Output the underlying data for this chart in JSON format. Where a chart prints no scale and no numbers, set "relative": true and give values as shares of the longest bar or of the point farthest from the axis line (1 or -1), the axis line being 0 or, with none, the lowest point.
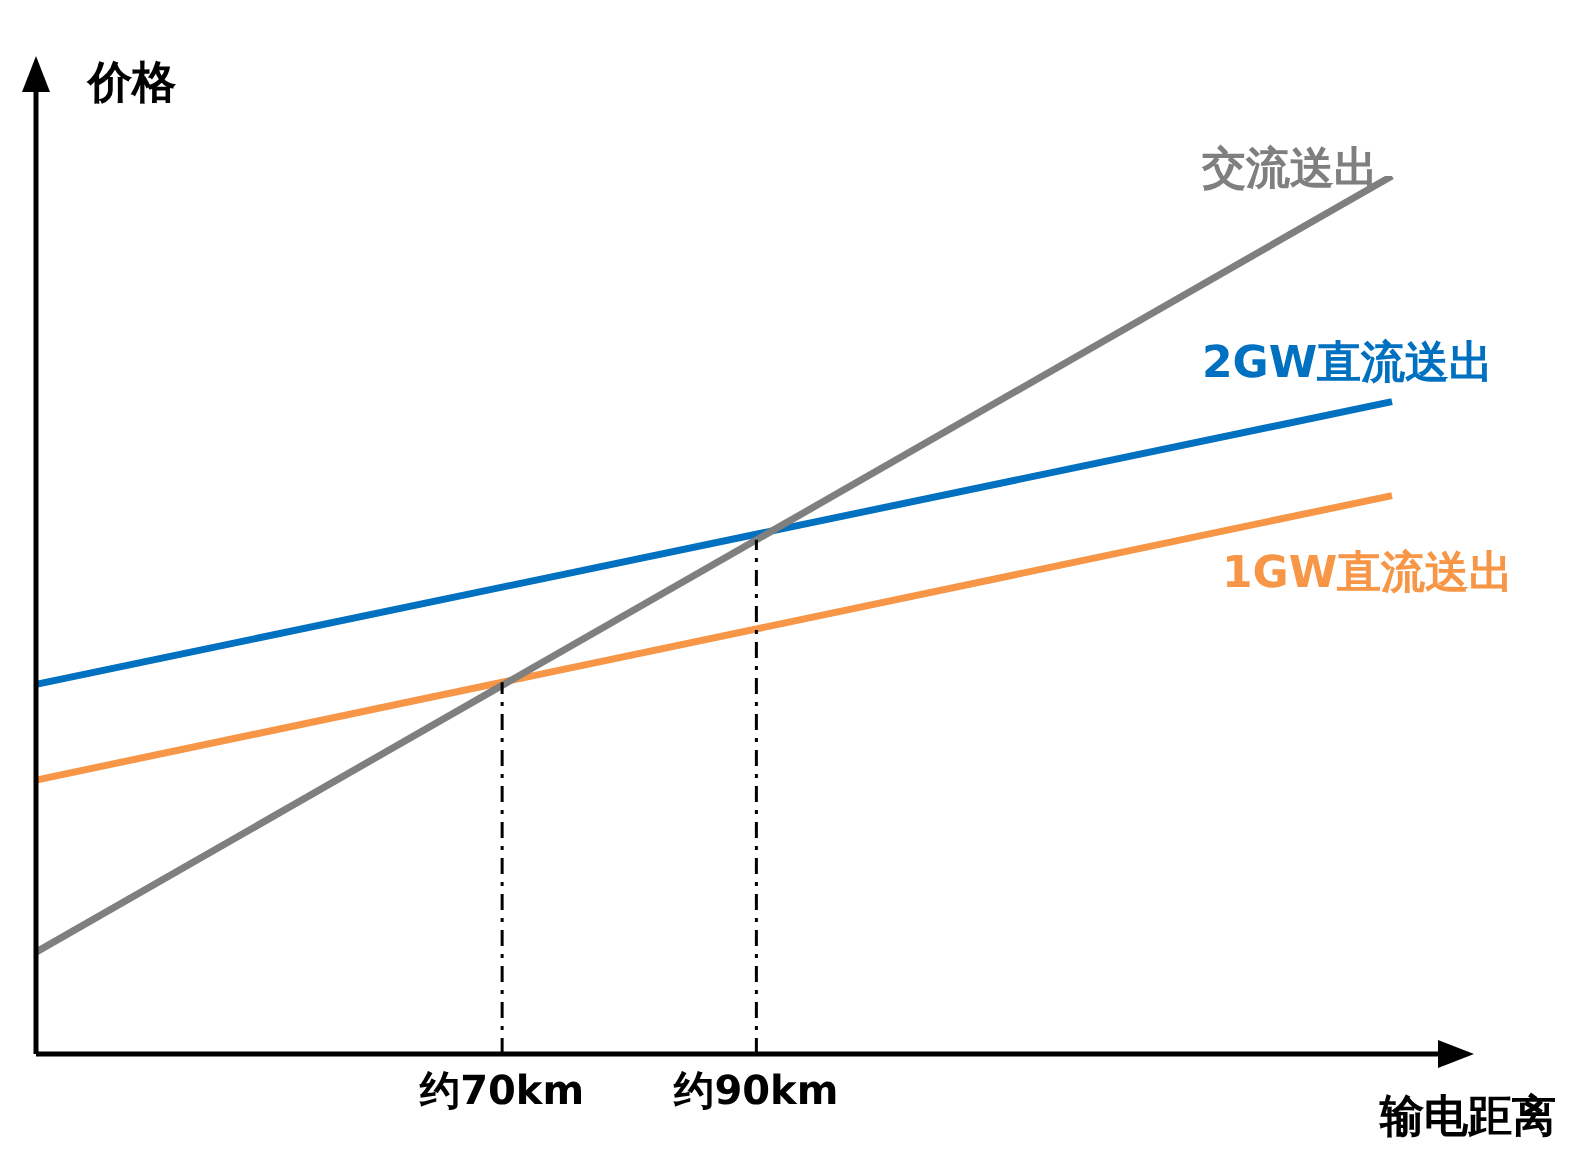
{
  "chart_data": {
    "type": "line",
    "relative": true,
    "ylabel": "价格",
    "xlabel": "输电距离",
    "categories": [
      null,
      null,
      null,
      null,
      null,
      null,
      null,
      null,
      null,
      null,
      null,
      "约70km",
      null,
      null,
      null,
      null,
      null,
      "约90km",
      null,
      null,
      null,
      null,
      null,
      null,
      null,
      null,
      null,
      null,
      null,
      null,
      null,
      null,
      null
    ],
    "grid": false,
    "legend": false,
    "marker": "none",
    "line_style": "solid",
    "series": [
      {
        "name": "交流送出",
        "color": "#7f7f7f",
        "values": [
          0.116,
          null,
          null,
          null,
          null,
          null,
          null,
          null,
          null,
          null,
          null,
          null,
          null,
          null,
          null,
          null,
          null,
          null,
          null,
          null,
          null,
          null,
          null,
          null,
          null,
          null,
          null,
          null,
          null,
          null,
          null,
          null,
          1
        ]
      },
      {
        "name": "2GW直流送出",
        "color": "#0070c0",
        "values": [
          0.421,
          null,
          null,
          null,
          null,
          null,
          null,
          null,
          null,
          null,
          null,
          null,
          null,
          null,
          null,
          null,
          null,
          null,
          null,
          null,
          null,
          null,
          null,
          null,
          null,
          null,
          null,
          null,
          null,
          null,
          null,
          null,
          0.743
        ]
      },
      {
        "name": "1GW直流送出",
        "color": "#f79646",
        "values": [
          0.312,
          null,
          null,
          null,
          null,
          null,
          null,
          null,
          null,
          null,
          null,
          null,
          null,
          null,
          null,
          null,
          null,
          null,
          null,
          null,
          null,
          null,
          null,
          null,
          null,
          null,
          null,
          null,
          null,
          null,
          null,
          null,
          0.636
        ]
      }
    ],
    "ref_lines": [
      {
        "axis": "x",
        "value": "约70km",
        "color": "#000000",
        "line_style": "dashed"
      },
      {
        "axis": "x",
        "value": "约90km",
        "color": "#000000",
        "line_style": "dashed"
      }
    ]
  }
}
